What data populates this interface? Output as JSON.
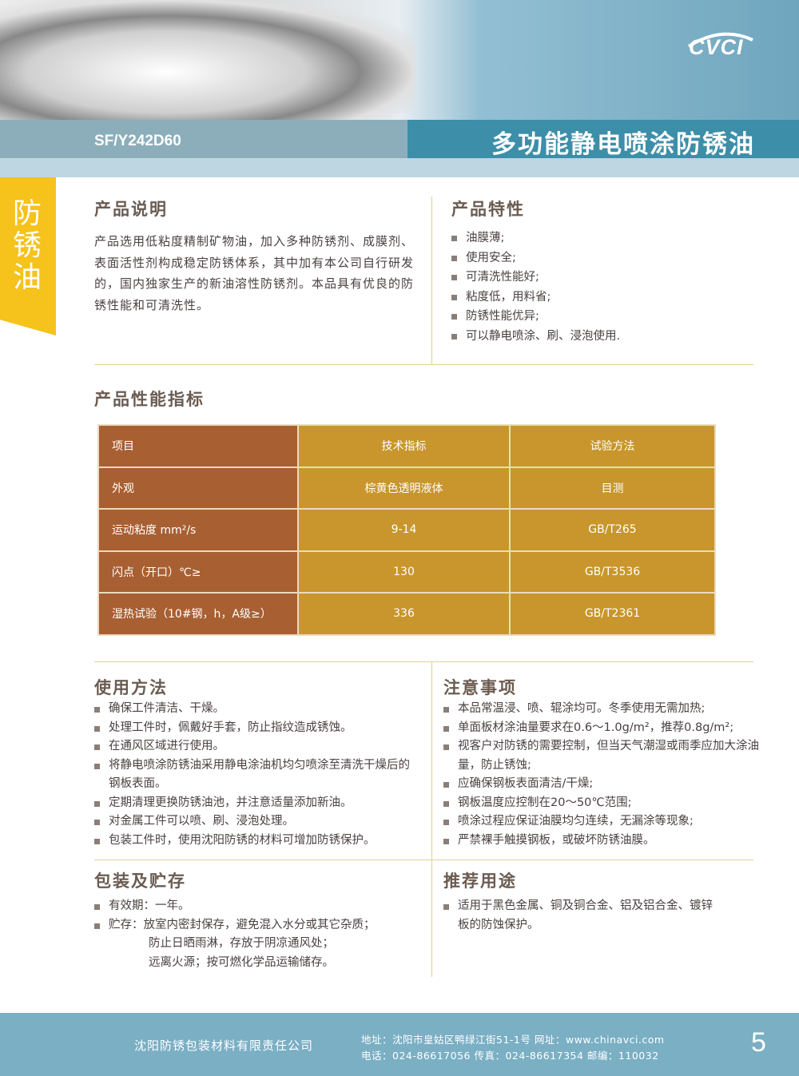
{
  "header": {
    "product_code": "SF/Y242D60",
    "title": "多功能静电喷涂防锈油",
    "logo": "CVCI"
  },
  "side_tab": "防锈油",
  "description": {
    "heading": "产品说明",
    "text": "产品选用低粘度精制矿物油，加入多种防锈剂、成膜剂、表面活性剂构成稳定防锈体系，其中加有本公司自行研发的，国内独家生产的新油溶性防锈剂。本品具有优良的防锈性能和可清洗性。"
  },
  "features": {
    "heading": "产品特性",
    "items": [
      "油膜薄;",
      "使用安全;",
      "可清洗性能好;",
      "粘度低，用料省;",
      "防锈性能优异;",
      "可以静电喷涂、刷、浸泡使用."
    ]
  },
  "specs": {
    "heading": "产品性能指标",
    "header": [
      "项目",
      "技术指标",
      "试验方法"
    ],
    "rows": [
      [
        "外观",
        "棕黄色透明液体",
        "目测"
      ],
      [
        "运动粘度 mm²/s",
        "9-14",
        "GB/T265"
      ],
      [
        "闪点（开口）℃≥",
        "130",
        "GB/T3536"
      ],
      [
        "湿热试验（10#钢，h，A级≥）",
        "336",
        "GB/T2361"
      ]
    ]
  },
  "usage": {
    "heading": "使用方法",
    "items": [
      "确保工件清洁、干燥。",
      "处理工件时，佩戴好手套，防止指纹造成锈蚀。",
      "在通风区域进行使用。",
      "将静电喷涂防锈油采用静电涂油机均匀喷涂至清洗干燥后的钢板表面。",
      "定期清理更换防锈油池，并注意适量添加新油。",
      "对金属工件可以喷、刷、浸泡处理。",
      "包装工件时，使用沈阳防锈的材料可增加防锈保护。"
    ]
  },
  "notes": {
    "heading": "注意事项",
    "items": [
      "本品常温浸、喷、辊涂均可。冬季使用无需加热;",
      "单面板材涂油量要求在0.6～1.0g/m²，推荐0.8g/m²;",
      "视客户对防锈的需要控制，但当天气潮湿或雨季应加大涂油量，防止锈蚀;",
      "应确保钢板表面清洁/干燥;",
      "钢板温度应控制在20～50℃范围;",
      "喷涂过程应保证油膜均匀连续，无漏涂等现象;",
      "严禁裸手触摸钢板，或破坏防锈油膜。"
    ]
  },
  "storage": {
    "heading": "包装及贮存",
    "items": [
      "有效期：一年。",
      "贮存：放室内密封保存，避免混入水分或其它杂质；"
    ],
    "continuation": [
      "防止日晒雨淋，存放于阴凉通风处；",
      "远离火源；按可燃化学品运输储存。"
    ]
  },
  "applications": {
    "heading": "推荐用途",
    "items": [
      "适用于黑色金属、铜及铜合金、铝及铝合金、镀锌板的防蚀保护。"
    ]
  },
  "footer": {
    "company": "沈阳防锈包装材料有限责任公司",
    "address_line": "地址：沈阳市皇姑区鸭绿江街51-1号   网址：www.chinavci.com",
    "contact_line": "电话：024-86617056   传真：024-86617354   邮编：110032",
    "page_number": "5"
  },
  "colors": {
    "header_band": "#3d8ea8",
    "side_tab": "#f6c21c",
    "table_label": "#a85f32",
    "table_value": "#c8962c",
    "footer": "#7aafc4"
  }
}
